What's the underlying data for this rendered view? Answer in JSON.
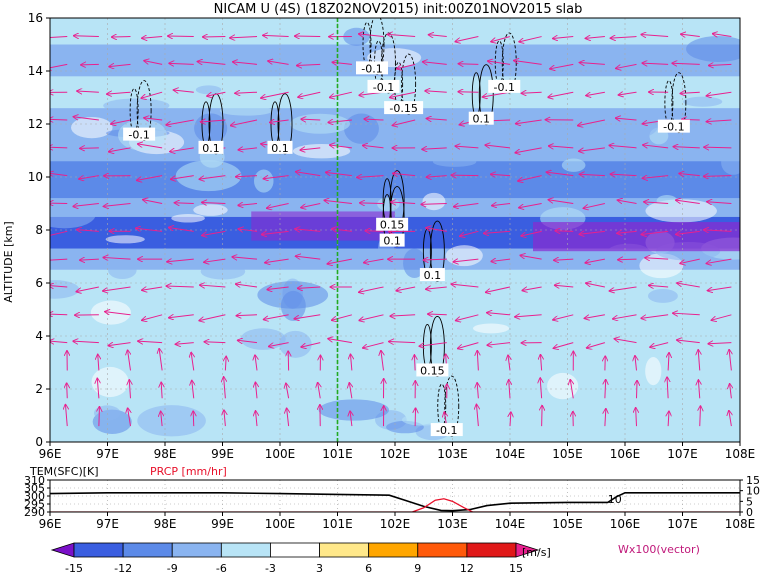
{
  "chart_data": [
    {
      "type": "heatmap",
      "title": "NICAM U (4S) (18Z02NOV2015) init:00Z01NOV2015 slab",
      "ylabel": "ALTITUDE [km]",
      "xlim": [
        96,
        108
      ],
      "ylim": [
        0,
        16
      ],
      "x_ticks": [
        "96E",
        "97E",
        "98E",
        "99E",
        "100E",
        "101E",
        "102E",
        "103E",
        "104E",
        "105E",
        "106E",
        "107E",
        "108E"
      ],
      "y_ticks": [
        "0",
        "2",
        "4",
        "6",
        "8",
        "10",
        "12",
        "14",
        "16"
      ],
      "grid": true,
      "marker_line_lon": 101,
      "field_bands": [
        {
          "z0": 0,
          "z1": 1.2,
          "u": -4
        },
        {
          "z0": 1.2,
          "z1": 3.0,
          "u": -5
        },
        {
          "z0": 3.0,
          "z1": 4.5,
          "u": -4
        },
        {
          "z0": 4.5,
          "z1": 6.5,
          "u": -4
        },
        {
          "z0": 6.5,
          "z1": 7.3,
          "u": -9
        },
        {
          "z0": 7.3,
          "z1": 8.5,
          "u": -14
        },
        {
          "z0": 8.5,
          "z1": 9.2,
          "u": -9
        },
        {
          "z0": 9.2,
          "z1": 10.6,
          "u": -12
        },
        {
          "z0": 10.6,
          "z1": 12.6,
          "u": -9
        },
        {
          "z0": 12.6,
          "z1": 13.8,
          "u": -5
        },
        {
          "z0": 13.8,
          "z1": 15.0,
          "u": -9
        },
        {
          "z0": 15.0,
          "z1": 16.0,
          "u": -4
        }
      ],
      "contour_labels": [
        {
          "text": "-0.1",
          "lon": 97.55,
          "z": 11.6
        },
        {
          "text": "0.1",
          "lon": 98.8,
          "z": 11.1
        },
        {
          "text": "0.1",
          "lon": 100.0,
          "z": 11.1
        },
        {
          "text": "-0.1",
          "lon": 101.6,
          "z": 14.1
        },
        {
          "text": "-0.1",
          "lon": 101.8,
          "z": 13.4
        },
        {
          "text": "-0.15",
          "lon": 102.15,
          "z": 12.6
        },
        {
          "text": "-0.1",
          "lon": 103.9,
          "z": 13.4
        },
        {
          "text": "0.1",
          "lon": 103.5,
          "z": 12.2
        },
        {
          "text": "-0.1",
          "lon": 106.85,
          "z": 11.9
        },
        {
          "text": "0.15",
          "lon": 101.95,
          "z": 8.2
        },
        {
          "text": "0.1",
          "lon": 101.95,
          "z": 7.6
        },
        {
          "text": "0.1",
          "lon": 102.65,
          "z": 6.3
        },
        {
          "text": "0.15",
          "lon": 102.65,
          "z": 2.7
        },
        {
          "text": "-0.1",
          "lon": 102.9,
          "z": 0.45
        }
      ]
    },
    {
      "type": "line",
      "xlim": [
        96,
        108
      ],
      "x_ticks": [
        "96E",
        "97E",
        "98E",
        "99E",
        "100E",
        "101E",
        "102E",
        "103E",
        "104E",
        "105E",
        "106E",
        "107E",
        "108E"
      ],
      "left_axis_label": "TEM(SFC)[K]",
      "left_ticks": [
        "290",
        "295",
        "300",
        "305",
        "310"
      ],
      "left_range": [
        290,
        310
      ],
      "right_axis_label": "PRCP [mm/hr]",
      "right_ticks": [
        "0",
        "5",
        "10",
        "15"
      ],
      "right_range": [
        0,
        15
      ],
      "series": [
        {
          "name": "TEM(SFC)[K]",
          "x": [
            96,
            97,
            98,
            99,
            100,
            101,
            101.9,
            102.2,
            102.5,
            102.8,
            103.0,
            103.3,
            103.6,
            104.0,
            105.0,
            105.7,
            105.85,
            106.0,
            107.0,
            108
          ],
          "y": [
            301.5,
            302,
            302,
            302,
            301.5,
            301,
            300.5,
            297,
            293.5,
            291,
            290.8,
            291.5,
            294,
            295.5,
            296,
            296,
            299.5,
            302,
            302,
            302
          ]
        },
        {
          "name": "PRCP [mm/hr]",
          "x": [
            96,
            102.3,
            102.5,
            102.7,
            102.85,
            103.0,
            103.2,
            103.35,
            108
          ],
          "y": [
            0,
            0,
            2,
            5.5,
            6.2,
            5,
            2,
            0,
            0
          ]
        }
      ],
      "annotation": {
        "text": "10",
        "lon": 105.7,
        "value": 10
      }
    }
  ],
  "colorbar": {
    "levels": [
      "-15",
      "-12",
      "-9",
      "-6",
      "-3",
      "3",
      "6",
      "9",
      "12",
      "15"
    ],
    "units": "[m/s]",
    "colors": [
      "#7a10c8",
      "#3a5ee0",
      "#5c8ae8",
      "#8ab4f0",
      "#b8e4f6",
      "#ffffff",
      "#ffe88a",
      "#ffa600",
      "#ff5a0a",
      "#e01818",
      "#a00000",
      "#e8208e"
    ]
  },
  "vector_label": "Wx100(vector)"
}
